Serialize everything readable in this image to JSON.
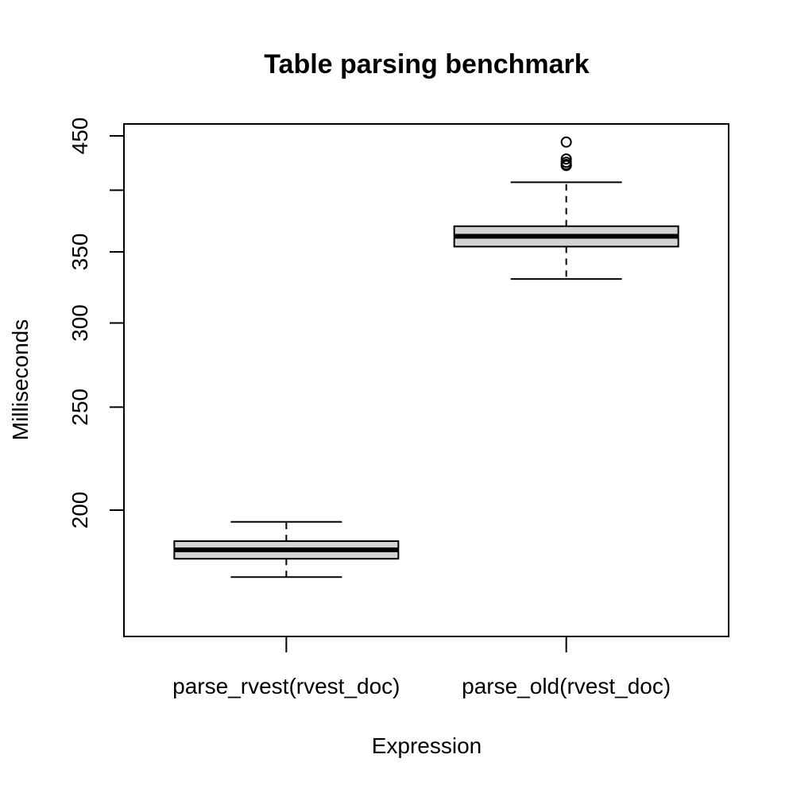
{
  "chart_data": {
    "type": "box",
    "title": "Table parsing benchmark",
    "xlabel": "Expression",
    "ylabel": "Milliseconds",
    "y_scale": "log",
    "yticks": [
      200,
      250,
      300,
      350,
      400,
      450
    ],
    "ytick_labels": [
      "200",
      "250",
      "300",
      "350",
      "",
      "450"
    ],
    "ylim": [
      168,
      460
    ],
    "grid": false,
    "box_fill": "#d3d3d3",
    "line_color": "#000000",
    "categories": [
      "parse_rvest(rvest_doc)",
      "parse_old(rvest_doc)"
    ],
    "boxes": [
      {
        "name": "parse_rvest(rvest_doc)",
        "whisker_low": 173,
        "q1": 180,
        "median": 183.5,
        "q3": 187,
        "whisker_high": 195,
        "outliers": []
      },
      {
        "name": "parse_old(rvest_doc)",
        "whisker_low": 330,
        "q1": 354,
        "median": 362,
        "q3": 370,
        "whisker_high": 407,
        "outliers": [
          422,
          423,
          425,
          428,
          444
        ]
      }
    ]
  }
}
